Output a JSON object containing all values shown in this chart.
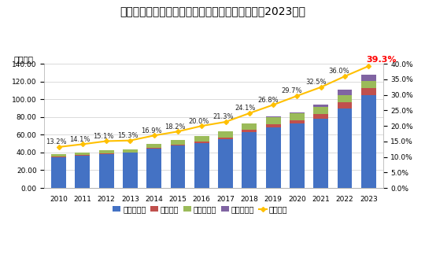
{
  "title": "我が国のキャッシュレス決済額及び比率の推移（2023年）",
  "years": [
    2010,
    2011,
    2012,
    2013,
    2014,
    2015,
    2016,
    2017,
    2018,
    2019,
    2020,
    2021,
    2022,
    2023
  ],
  "credit": [
    35.0,
    36.5,
    38.5,
    39.5,
    44.0,
    47.5,
    51.0,
    55.0,
    63.0,
    68.5,
    72.5,
    78.5,
    90.0,
    105.0
  ],
  "debit": [
    0.5,
    0.6,
    0.7,
    0.8,
    1.0,
    1.2,
    1.5,
    1.8,
    2.5,
    3.2,
    4.0,
    5.0,
    6.5,
    8.0
  ],
  "emoney": [
    2.5,
    2.5,
    3.0,
    3.5,
    4.5,
    5.5,
    6.5,
    7.0,
    7.0,
    8.5,
    7.5,
    7.5,
    8.0,
    8.0
  ],
  "code": [
    0.0,
    0.0,
    0.0,
    0.0,
    0.0,
    0.0,
    0.0,
    0.0,
    0.5,
    1.0,
    1.5,
    3.5,
    6.5,
    7.0
  ],
  "ratio": [
    13.2,
    14.1,
    15.1,
    15.3,
    16.9,
    18.2,
    20.0,
    21.3,
    24.1,
    26.8,
    29.7,
    32.5,
    36.0,
    39.3
  ],
  "bar_colors": {
    "credit": "#4472C4",
    "debit": "#C0504D",
    "emoney": "#9BBB59",
    "code": "#8064A2"
  },
  "line_color": "#FFC000",
  "ratio_label_color": "#FF0000",
  "ylabel_left": "（兆円）",
  "ylim_left": [
    0,
    140
  ],
  "ylim_right": [
    0,
    40
  ],
  "yticks_left": [
    0,
    20,
    40,
    60,
    80,
    100,
    120,
    140
  ],
  "yticks_right": [
    0,
    5,
    10,
    15,
    20,
    25,
    30,
    35,
    40
  ],
  "ytick_labels_right": [
    "0.0%",
    "5.0%",
    "10.0%",
    "15.0%",
    "20.0%",
    "25.0%",
    "30.0%",
    "35.0%",
    "40.0%"
  ],
  "legend_labels": [
    "クレジット",
    "デビット",
    "電子マネー",
    "コード決済",
    "決済比率"
  ],
  "ratio_annotations": {
    "2010": "13.2%",
    "2011": "14.1%",
    "2012": "15.1%",
    "2013": "15.3%",
    "2014": "16.9%",
    "2015": "18.2%",
    "2016": "20.0%",
    "2017": "21.3%",
    "2018": "24.1%",
    "2019": "26.8%",
    "2020": "29.7%",
    "2021": "32.5%",
    "2022": "36.0%",
    "2023": "39.3%"
  },
  "last_ratio_fontsize": 8,
  "annotation_fontsize": 6,
  "title_fontsize": 10,
  "background_color": "#FFFFFF",
  "plot_bg_color": "#FFFFFF",
  "grid_color": "#CCCCCC"
}
